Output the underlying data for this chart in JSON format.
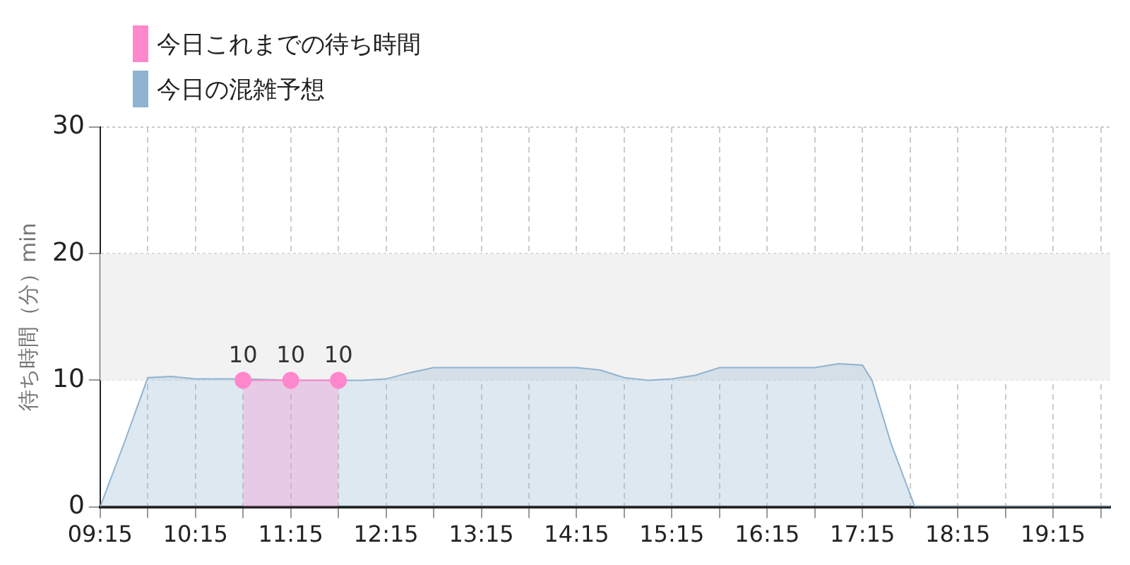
{
  "chart_data": {
    "type": "area",
    "ylabel": "待ち時間（分）min",
    "legend": "top left",
    "grid": true,
    "xlim": [
      9.25,
      19.85
    ],
    "ylim": [
      0,
      30
    ],
    "yticks": [
      0,
      10,
      20,
      30
    ],
    "xticks": [
      {
        "value": 9.25,
        "label": "09:15"
      },
      {
        "value": 9.75,
        "label": null
      },
      {
        "value": 10.25,
        "label": "10:15"
      },
      {
        "value": 10.75,
        "label": null
      },
      {
        "value": 11.25,
        "label": "11:15"
      },
      {
        "value": 11.75,
        "label": null
      },
      {
        "value": 12.25,
        "label": "12:15"
      },
      {
        "value": 12.75,
        "label": null
      },
      {
        "value": 13.25,
        "label": "13:15"
      },
      {
        "value": 13.75,
        "label": null
      },
      {
        "value": 14.25,
        "label": "14:15"
      },
      {
        "value": 14.75,
        "label": null
      },
      {
        "value": 15.25,
        "label": "15:15"
      },
      {
        "value": 15.75,
        "label": null
      },
      {
        "value": 16.25,
        "label": "16:15"
      },
      {
        "value": 16.75,
        "label": null
      },
      {
        "value": 17.25,
        "label": "17:15"
      },
      {
        "value": 17.75,
        "label": null
      },
      {
        "value": 18.25,
        "label": "18:15"
      },
      {
        "value": 18.75,
        "label": null
      },
      {
        "value": 19.25,
        "label": "19:15"
      },
      {
        "value": 19.75,
        "label": null
      }
    ],
    "bands": [
      {
        "axis": "y",
        "from": 10,
        "to": 20,
        "color": "#f2f2f2"
      }
    ],
    "series": [
      {
        "name": "今日これまでの待ち時間",
        "color": "#ff88cc",
        "marker": "circle",
        "x": [
          10.75,
          11.25,
          11.75
        ],
        "values": [
          10,
          10,
          10
        ],
        "value_labels": [
          "10",
          "10",
          "10"
        ]
      },
      {
        "name": "今日の混雑予想",
        "color": "#8fb3d1",
        "marker": "none",
        "x": [
          9.25,
          9.5,
          9.75,
          10.0,
          10.25,
          10.5,
          10.75,
          11.25,
          11.75,
          12.0,
          12.25,
          12.5,
          12.75,
          13.25,
          13.75,
          14.25,
          14.5,
          14.75,
          15.0,
          15.25,
          15.5,
          15.75,
          16.25,
          16.75,
          17.0,
          17.25,
          17.35,
          17.55,
          17.8,
          18.25,
          18.75,
          19.25,
          19.85
        ],
        "values": [
          0,
          5,
          10.2,
          10.3,
          10.1,
          10.1,
          10.1,
          10.0,
          10.0,
          10.0,
          10.1,
          10.6,
          11.0,
          11.0,
          11.0,
          11.0,
          10.8,
          10.2,
          10.0,
          10.1,
          10.4,
          11.0,
          11.0,
          11.0,
          11.3,
          11.2,
          10.0,
          5,
          0,
          0,
          0,
          0,
          0
        ]
      }
    ]
  }
}
